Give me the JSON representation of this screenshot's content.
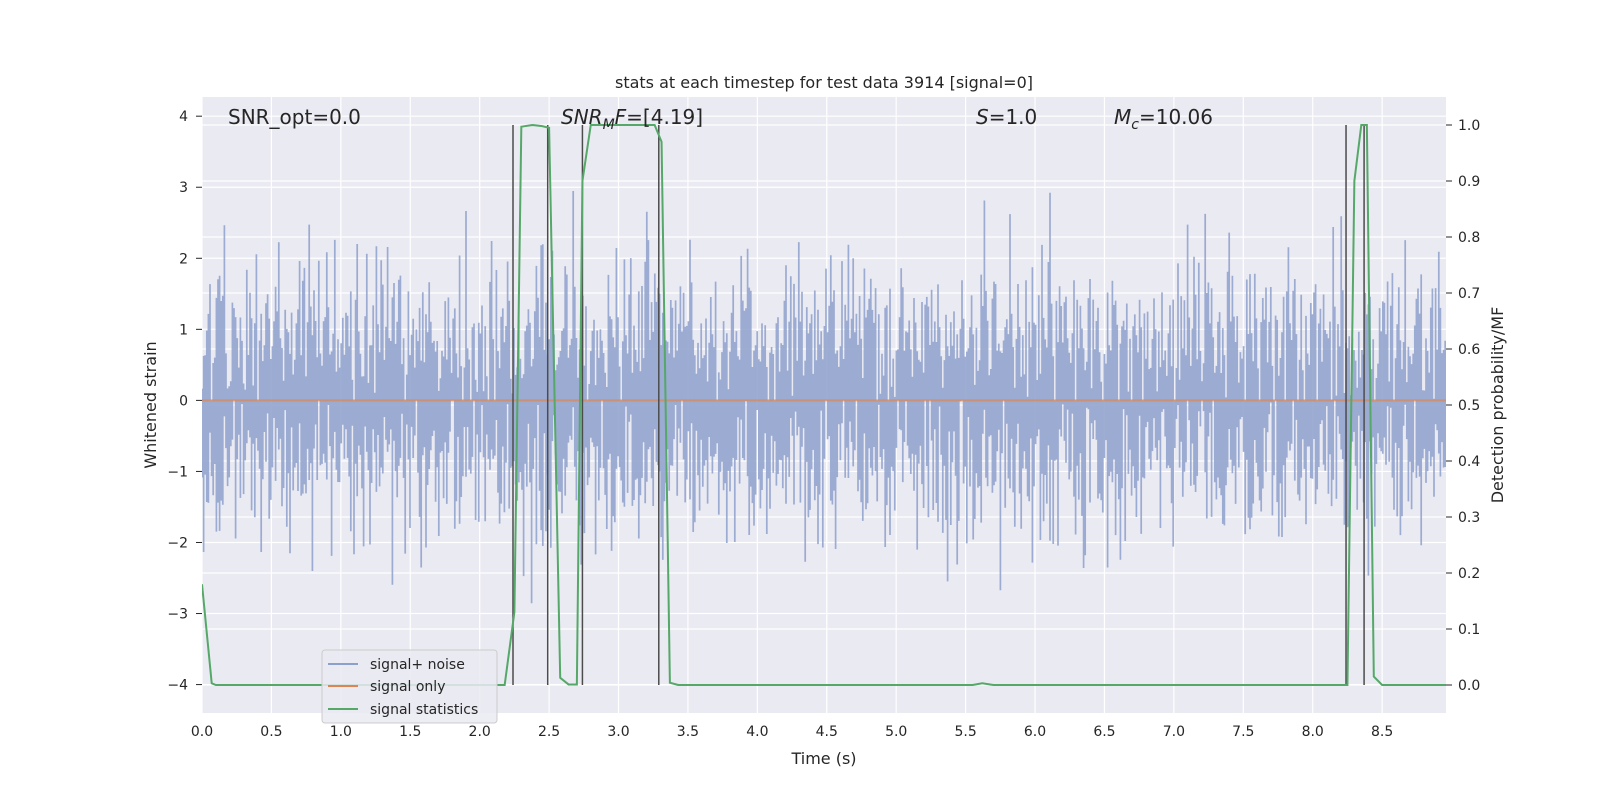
{
  "chart_data": {
    "type": "line",
    "title": "stats at each timestep for test data 3914 [signal=0]",
    "xlabel": "Time (s)",
    "ylabel_left": "Whitened strain",
    "ylabel_right": "Detection probability/MF",
    "xlim": [
      0.0,
      8.96
    ],
    "ylim_left": [
      -4.4,
      4.27
    ],
    "ylim_right": [
      -0.05,
      1.05
    ],
    "x_ticks": [
      "0.0",
      "0.5",
      "1.0",
      "1.5",
      "2.0",
      "2.5",
      "3.0",
      "3.5",
      "4.0",
      "4.5",
      "5.0",
      "5.5",
      "6.0",
      "6.5",
      "7.0",
      "7.5",
      "8.0",
      "8.5"
    ],
    "x_tick_values": [
      0.0,
      0.5,
      1.0,
      1.5,
      2.0,
      2.5,
      3.0,
      3.5,
      4.0,
      4.5,
      5.0,
      5.5,
      6.0,
      6.5,
      7.0,
      7.5,
      8.0,
      8.5
    ],
    "y_left_ticks": [
      "4",
      "3",
      "2",
      "1",
      "0",
      "−1",
      "−2",
      "−3",
      "−4"
    ],
    "y_left_tick_values": [
      4,
      3,
      2,
      1,
      0,
      -1,
      -2,
      -3,
      -4
    ],
    "y_right_ticks": [
      "1.0",
      "0.9",
      "0.8",
      "0.7",
      "0.6",
      "0.5",
      "0.4",
      "0.3",
      "0.2",
      "0.1",
      "0.0"
    ],
    "y_right_tick_values": [
      1.0,
      0.9,
      0.8,
      0.7,
      0.6,
      0.5,
      0.4,
      0.3,
      0.2,
      0.1,
      0.0
    ],
    "grid": true,
    "legend_position": "bottom-left",
    "annotations": {
      "snr_opt": "SNR_opt=0.0",
      "snr_mf_italic": "SNR",
      "snr_mf_sub": "M",
      "snr_mf_italic2": "F",
      "snr_mf_rest": "=[4.19]",
      "s_italic": "S",
      "s_rest": "=1.0",
      "mc_italic": "M",
      "mc_sub": "c",
      "mc_rest": "=10.06"
    },
    "series": [
      {
        "name": "signal+ noise",
        "axis": "left",
        "color": "#8da0cb",
        "kind": "noise",
        "envelope_upper_typical": 1.9,
        "envelope_lower_typical": -1.9,
        "peak_range": [
          3.3,
          -3.65
        ]
      },
      {
        "name": "signal only",
        "axis": "left",
        "color": "#dd8452",
        "kind": "line",
        "x": [
          0.0,
          8.96
        ],
        "y": [
          0.0,
          0.0
        ]
      },
      {
        "name": "signal statistics",
        "axis": "right",
        "color": "#55a868",
        "kind": "line",
        "x": [
          0.0,
          0.07,
          0.1,
          2.18,
          2.25,
          2.3,
          2.38,
          2.45,
          2.5,
          2.58,
          2.64,
          2.7,
          2.74,
          2.8,
          2.82,
          3.26,
          3.31,
          3.37,
          3.43,
          5.55,
          5.62,
          5.7,
          8.25,
          8.3,
          8.35,
          8.39,
          8.44,
          8.5,
          8.96
        ],
        "y": [
          0.18,
          0.003,
          0.0,
          0.0,
          0.13,
          0.997,
          1.0,
          0.998,
          0.995,
          0.013,
          0.001,
          0.001,
          0.9,
          1.0,
          1.0,
          1.0,
          0.97,
          0.004,
          0.0,
          0.0,
          0.003,
          0.0,
          0.0,
          0.9,
          1.0,
          1.0,
          0.015,
          0.0,
          0.0
        ]
      }
    ],
    "vertical_markers": [
      {
        "x": 2.24,
        "color": "#4c4c4c"
      },
      {
        "x": 2.49,
        "color": "#4c4c4c"
      },
      {
        "x": 2.74,
        "color": "#4c4c4c"
      },
      {
        "x": 3.29,
        "color": "#4c4c4c"
      },
      {
        "x": 8.24,
        "color": "#4c4c4c"
      },
      {
        "x": 8.37,
        "color": "#4c4c4c"
      }
    ],
    "colors": {
      "axes_background": "#eaeaf2",
      "grid": "#ffffff",
      "text": "#262626"
    }
  }
}
